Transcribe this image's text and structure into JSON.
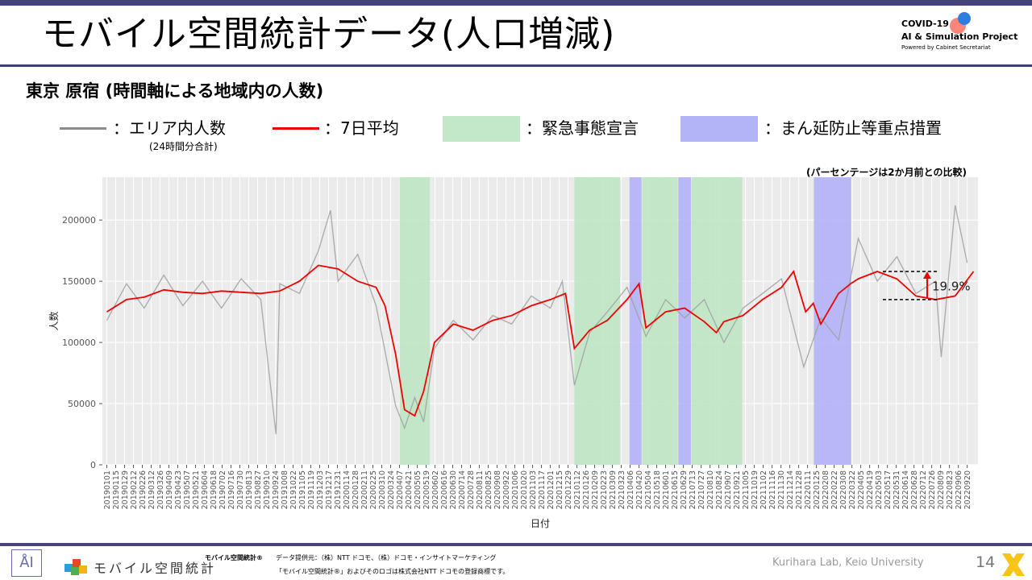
{
  "header": {
    "title": "モバイル空間統計データ(人口増減)",
    "project_line1": "COVID-19",
    "project_line2": "AI & Simulation Project",
    "project_line3": "Powered by Cabinet Secretariat"
  },
  "subtitle": "東京 原宿 (時間軸による地域内の人数)",
  "legend": {
    "gray_label": "：エリア内人数",
    "gray_note": "(24時間分合計)",
    "red_label": "：7日平均",
    "green_label": "：緊急事態宣言",
    "blue_label": "：まん延防止等重点措置"
  },
  "percent_note": "(パーセンテージは2か月前との比較)",
  "colors": {
    "daily_line": "#9e9e9e",
    "avg_line": "#ee0000",
    "emergency": "#bfe5c4",
    "priority": "#b3b3f7",
    "panel_bg": "#ebebeb"
  },
  "chart_data": {
    "type": "line",
    "xlabel": "日付",
    "ylabel": "人数",
    "ylim": [
      0,
      235000
    ],
    "y_ticks": [
      0,
      50000,
      100000,
      150000,
      200000
    ],
    "y_tick_labels": [
      "0",
      "50000",
      "100000",
      "150000",
      "200000"
    ],
    "x_tick_labels": [
      "20190101",
      "20190115",
      "20190129",
      "20190212",
      "20190226",
      "20190312",
      "20190326",
      "20190409",
      "20190423",
      "20190507",
      "20190521",
      "20190604",
      "20190618",
      "20190702",
      "20190716",
      "20190730",
      "20190813",
      "20190827",
      "20190910",
      "20190924",
      "20191008",
      "20191022",
      "20191105",
      "20191119",
      "20191203",
      "20191217",
      "20191231",
      "20200114",
      "20200128",
      "20200211",
      "20200225",
      "20200310",
      "20200324",
      "20200407",
      "20200421",
      "20200505",
      "20200519",
      "20200602",
      "20200616",
      "20200630",
      "20200714",
      "20200728",
      "20200811",
      "20200825",
      "20200908",
      "20200922",
      "20201006",
      "20201020",
      "20201103",
      "20201117",
      "20201201",
      "20201215",
      "20201229",
      "20210112",
      "20210126",
      "20210209",
      "20210223",
      "20210309",
      "20210323",
      "20210406",
      "20210420",
      "20210504",
      "20210518",
      "20210601",
      "20210615",
      "20210629",
      "20210713",
      "20210727",
      "20210810",
      "20210824",
      "20210907",
      "20210921",
      "20211005",
      "20211019",
      "20211102",
      "20211116",
      "20211130",
      "20211214",
      "20211228",
      "20220111",
      "20220125",
      "20220208",
      "20220222",
      "20220308",
      "20220322",
      "20220405",
      "20220419",
      "20220503",
      "20220517",
      "20220531",
      "20220614",
      "20220628",
      "20220712",
      "20220726",
      "20220809",
      "20220823",
      "20220906",
      "20220920"
    ],
    "series": [
      {
        "name": "：7日平均",
        "x": [
          "20190101",
          "20190201",
          "20190301",
          "20190401",
          "20190501",
          "20190601",
          "20190701",
          "20190801",
          "20190901",
          "20191001",
          "20191101",
          "20191201",
          "20200101",
          "20200201",
          "20200301",
          "20200315",
          "20200401",
          "20200415",
          "20200501",
          "20200515",
          "20200601",
          "20200701",
          "20200801",
          "20200901",
          "20201001",
          "20201101",
          "20201201",
          "20201225",
          "20210108",
          "20210201",
          "20210301",
          "20210401",
          "20210420",
          "20210501",
          "20210601",
          "20210701",
          "20210801",
          "20210820",
          "20210901",
          "20211001",
          "20211101",
          "20211201",
          "20211220",
          "20220108",
          "20220120",
          "20220201",
          "20220301",
          "20220320",
          "20220401",
          "20220501",
          "20220601",
          "20220701",
          "20220801",
          "20220901",
          "20220930"
        ],
        "y": [
          125000,
          135000,
          137000,
          143000,
          141000,
          140000,
          142000,
          141000,
          140000,
          142000,
          150000,
          163000,
          160000,
          150000,
          145000,
          130000,
          90000,
          45000,
          40000,
          60000,
          100000,
          115000,
          110000,
          118000,
          122000,
          130000,
          135000,
          140000,
          95000,
          110000,
          118000,
          135000,
          148000,
          112000,
          125000,
          128000,
          117000,
          108000,
          117000,
          122000,
          135000,
          145000,
          158000,
          125000,
          132000,
          115000,
          140000,
          148000,
          152000,
          158000,
          152000,
          138000,
          135000,
          138000,
          158000
        ]
      },
      {
        "name": "：エリア内人数",
        "x": [
          "20190101",
          "20190201",
          "20190301",
          "20190401",
          "20190501",
          "20190601",
          "20190701",
          "20190801",
          "20190901",
          "20190925",
          "20191001",
          "20191101",
          "20191201",
          "20191220",
          "20200101",
          "20200201",
          "20200301",
          "20200401",
          "20200415",
          "20200501",
          "20200515",
          "20200601",
          "20200701",
          "20200801",
          "20200901",
          "20201001",
          "20201101",
          "20201201",
          "20201220",
          "20210108",
          "20210201",
          "20210301",
          "20210401",
          "20210501",
          "20210601",
          "20210701",
          "20210801",
          "20210901",
          "20211001",
          "20211101",
          "20211201",
          "20220105",
          "20220201",
          "20220301",
          "20220401",
          "20220501",
          "20220601",
          "20220701",
          "20220801",
          "20220810",
          "20220901",
          "20220920"
        ],
        "y": [
          118000,
          148000,
          128000,
          155000,
          130000,
          150000,
          128000,
          152000,
          135000,
          25000,
          148000,
          140000,
          175000,
          208000,
          150000,
          172000,
          130000,
          48000,
          30000,
          55000,
          35000,
          95000,
          118000,
          102000,
          122000,
          115000,
          138000,
          128000,
          150000,
          65000,
          108000,
          125000,
          145000,
          105000,
          135000,
          120000,
          135000,
          100000,
          128000,
          140000,
          152000,
          80000,
          120000,
          102000,
          185000,
          150000,
          170000,
          140000,
          150000,
          88000,
          212000,
          165000
        ]
      }
    ],
    "emergency_periods": [
      [
        "20200407",
        "20200525"
      ],
      [
        "20210108",
        "20210321"
      ],
      [
        "20210425",
        "20210620"
      ],
      [
        "20210712",
        "20210930"
      ]
    ],
    "priority_periods": [
      [
        "20210405",
        "20210424"
      ],
      [
        "20210621",
        "20210711"
      ],
      [
        "20220121",
        "20220321"
      ]
    ],
    "annotation": "19.9%"
  },
  "footer": {
    "brand": "モバイル空間統計",
    "line1": "モバイル空間統計®",
    "line2": "データ提供元：（株）NTT ドコモ、（株）ドコモ・インサイトマーケティング",
    "line3": "「モバイル空間統計®」およびそのロゴは株式会社NTT ドコモの登録商標です。",
    "lab": "Kurihara Lab, Keio University",
    "page": "14"
  }
}
